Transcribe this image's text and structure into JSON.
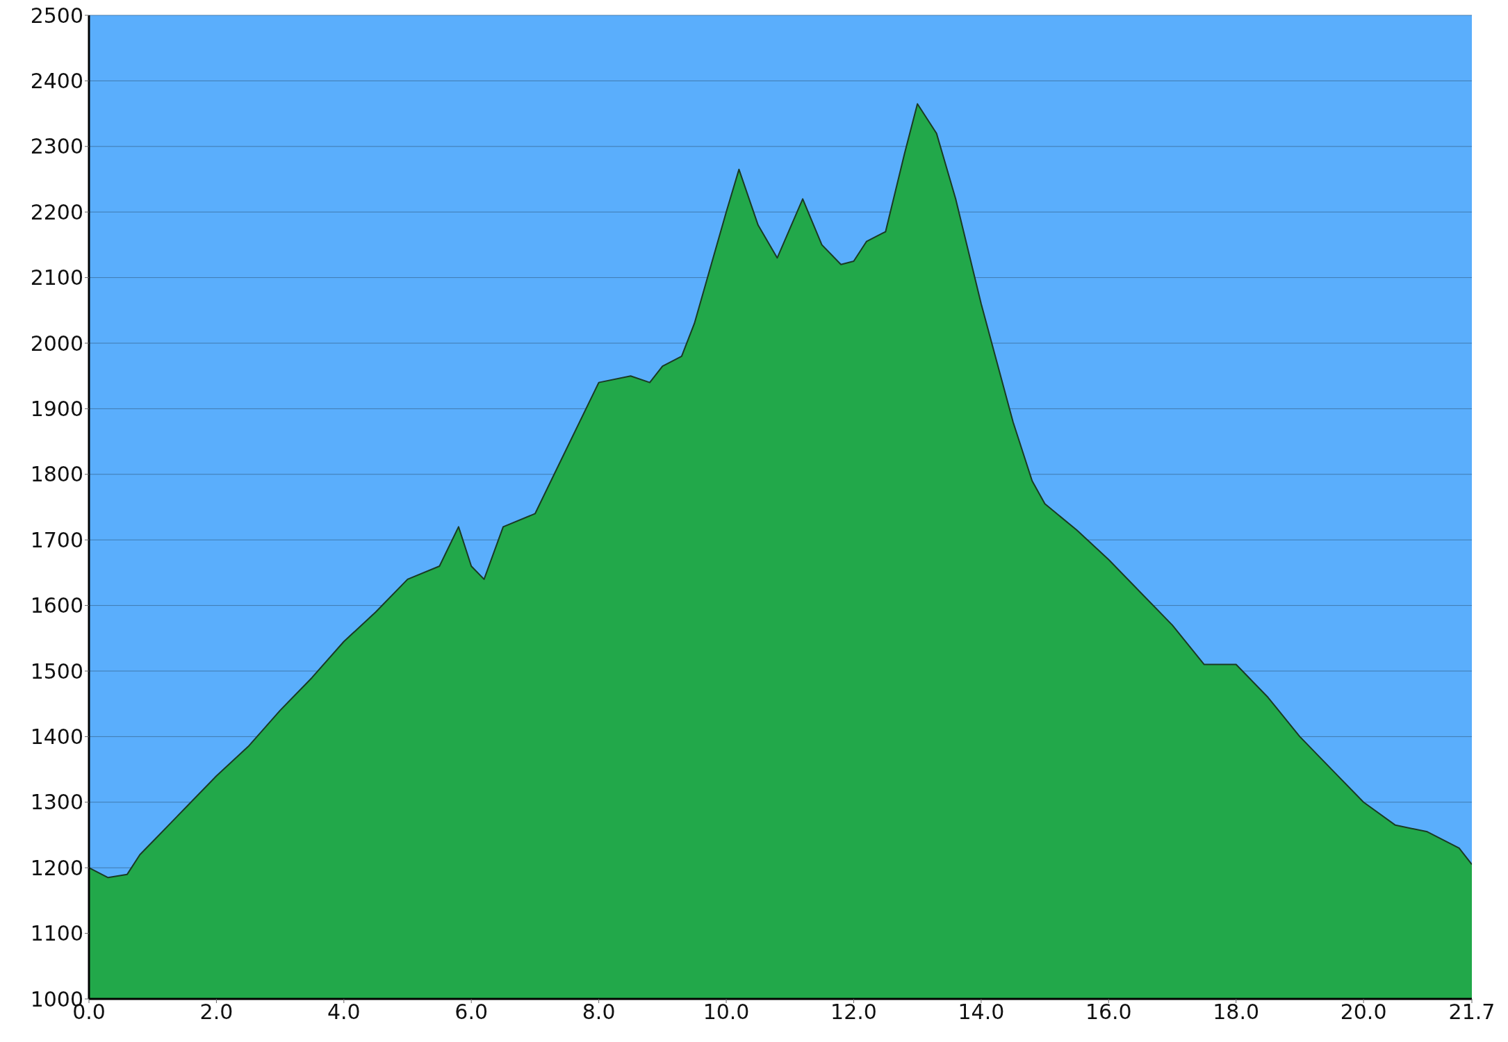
{
  "chart_data": {
    "type": "area",
    "color": "#22a84a",
    "x": [
      0,
      0.3,
      0.6,
      0.8,
      1,
      1.5,
      2,
      2.5,
      3,
      3.5,
      4,
      4.5,
      5,
      5.5,
      5.8,
      6,
      6.2,
      6.5,
      7,
      7.3,
      7.5,
      8,
      8.5,
      8.8,
      9,
      9.3,
      9.5,
      10,
      10.2,
      10.5,
      10.8,
      11.2,
      11.5,
      11.8,
      12,
      12.2,
      12.5,
      12.8,
      13,
      13.3,
      13.6,
      14,
      14.5,
      14.8,
      15,
      15.5,
      16,
      16.5,
      17,
      17.5,
      18,
      18.5,
      19,
      19.5,
      20,
      20.5,
      21,
      21.5,
      21.7
    ],
    "values": [
      1200,
      1185,
      1190,
      1220,
      1240,
      1290,
      1340,
      1385,
      1440,
      1490,
      1545,
      1590,
      1640,
      1660,
      1720,
      1660,
      1640,
      1720,
      1740,
      1800,
      1840,
      1940,
      1950,
      1940,
      1965,
      1980,
      2030,
      2200,
      2265,
      2180,
      2130,
      2220,
      2150,
      2120,
      2125,
      2155,
      2170,
      2290,
      2365,
      2320,
      2220,
      2060,
      1880,
      1790,
      1755,
      1715,
      1670,
      1620,
      1570,
      1510,
      1510,
      1460,
      1400,
      1350,
      1300,
      1265,
      1255,
      1230,
      1205
    ],
    "xlim": [
      0,
      21.7
    ],
    "xticks": [
      {
        "value": 0,
        "label": "0.0"
      },
      {
        "value": 2,
        "label": "2.0"
      },
      {
        "value": 4,
        "label": "4.0"
      },
      {
        "value": 6,
        "label": "6.0"
      },
      {
        "value": 8,
        "label": "8.0"
      },
      {
        "value": 10,
        "label": "10.0"
      },
      {
        "value": 12,
        "label": "12.0"
      },
      {
        "value": 14,
        "label": "14.0"
      },
      {
        "value": 16,
        "label": "16.0"
      },
      {
        "value": 18,
        "label": "18.0"
      },
      {
        "value": 20,
        "label": "20.0"
      },
      {
        "value": 21.7,
        "label": "21.7"
      }
    ],
    "ylim": [
      1000,
      2500
    ],
    "yticks": [
      1000,
      1100,
      1200,
      1300,
      1400,
      1500,
      1600,
      1700,
      1800,
      1900,
      2000,
      2100,
      2200,
      2300,
      2400,
      2500
    ],
    "grid": "y"
  }
}
